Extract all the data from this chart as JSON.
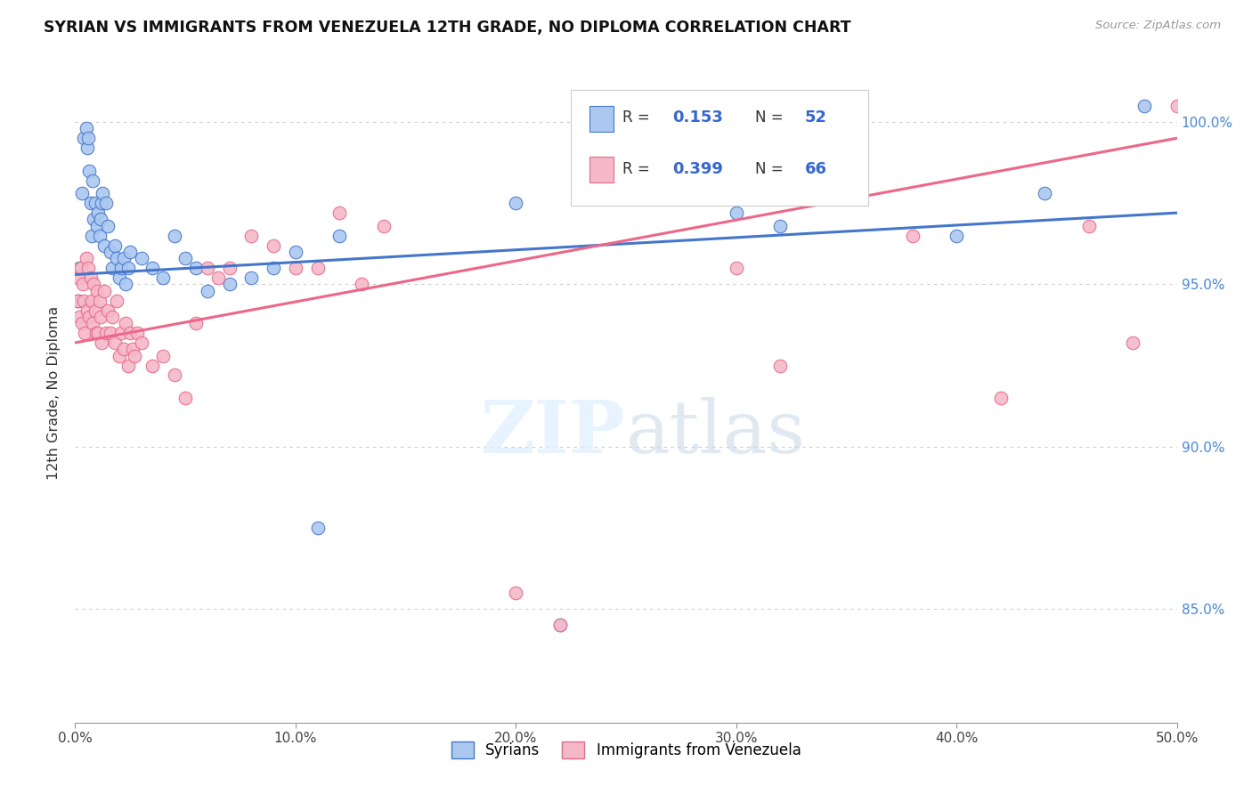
{
  "title": "SYRIAN VS IMMIGRANTS FROM VENEZUELA 12TH GRADE, NO DIPLOMA CORRELATION CHART",
  "source": "Source: ZipAtlas.com",
  "ylabel": "12th Grade, No Diploma",
  "x_min": 0.0,
  "x_max": 50.0,
  "y_min": 81.5,
  "y_max": 101.8,
  "color_syrian": "#aac8f0",
  "color_venezuela": "#f5b8c8",
  "color_line_syrian": "#4477cc",
  "color_line_venezuela": "#ee6688",
  "syrians_x": [
    0.15,
    0.2,
    0.3,
    0.4,
    0.5,
    0.55,
    0.6,
    0.65,
    0.7,
    0.75,
    0.8,
    0.85,
    0.9,
    1.0,
    1.05,
    1.1,
    1.15,
    1.2,
    1.25,
    1.3,
    1.4,
    1.5,
    1.6,
    1.7,
    1.8,
    1.9,
    2.0,
    2.1,
    2.2,
    2.3,
    2.4,
    2.5,
    3.0,
    3.5,
    4.0,
    4.5,
    5.0,
    5.5,
    6.0,
    7.0,
    8.0,
    9.0,
    10.0,
    11.0,
    12.0,
    20.0,
    22.0,
    30.0,
    32.0,
    40.0,
    44.0,
    48.5
  ],
  "syrians_y": [
    94.5,
    95.5,
    97.8,
    99.5,
    99.8,
    99.2,
    99.5,
    98.5,
    97.5,
    96.5,
    98.2,
    97.0,
    97.5,
    96.8,
    97.2,
    96.5,
    97.0,
    97.5,
    97.8,
    96.2,
    97.5,
    96.8,
    96.0,
    95.5,
    96.2,
    95.8,
    95.2,
    95.5,
    95.8,
    95.0,
    95.5,
    96.0,
    95.8,
    95.5,
    95.2,
    96.5,
    95.8,
    95.5,
    94.8,
    95.0,
    95.2,
    95.5,
    96.0,
    87.5,
    96.5,
    97.5,
    84.5,
    97.2,
    96.8,
    96.5,
    97.8,
    100.5
  ],
  "venezuela_x": [
    0.1,
    0.15,
    0.2,
    0.25,
    0.3,
    0.35,
    0.4,
    0.45,
    0.5,
    0.55,
    0.6,
    0.65,
    0.7,
    0.75,
    0.8,
    0.85,
    0.9,
    0.95,
    1.0,
    1.05,
    1.1,
    1.15,
    1.2,
    1.3,
    1.4,
    1.5,
    1.6,
    1.7,
    1.8,
    1.9,
    2.0,
    2.1,
    2.2,
    2.3,
    2.4,
    2.5,
    2.6,
    2.7,
    2.8,
    3.0,
    3.5,
    4.0,
    4.5,
    5.0,
    5.5,
    6.0,
    6.5,
    7.0,
    8.0,
    9.0,
    10.0,
    11.0,
    12.0,
    13.0,
    14.0,
    20.0,
    22.0,
    25.0,
    30.0,
    32.0,
    35.0,
    38.0,
    42.0,
    46.0,
    48.0,
    50.0
  ],
  "venezuela_y": [
    94.5,
    95.2,
    94.0,
    95.5,
    93.8,
    95.0,
    94.5,
    93.5,
    95.8,
    94.2,
    95.5,
    94.0,
    95.2,
    94.5,
    93.8,
    95.0,
    94.2,
    93.5,
    94.8,
    93.5,
    94.5,
    94.0,
    93.2,
    94.8,
    93.5,
    94.2,
    93.5,
    94.0,
    93.2,
    94.5,
    92.8,
    93.5,
    93.0,
    93.8,
    92.5,
    93.5,
    93.0,
    92.8,
    93.5,
    93.2,
    92.5,
    92.8,
    92.2,
    91.5,
    93.8,
    95.5,
    95.2,
    95.5,
    96.5,
    96.2,
    95.5,
    95.5,
    97.2,
    95.0,
    96.8,
    85.5,
    84.5,
    97.8,
    95.5,
    92.5,
    97.8,
    96.5,
    91.5,
    96.8,
    93.2,
    100.5
  ],
  "line_syrian_x0": 0.0,
  "line_syrian_x1": 50.0,
  "line_syrian_y0": 95.3,
  "line_syrian_y1": 97.2,
  "line_venezuela_x0": 0.0,
  "line_venezuela_x1": 50.0,
  "line_venezuela_y0": 93.2,
  "line_venezuela_y1": 99.5
}
